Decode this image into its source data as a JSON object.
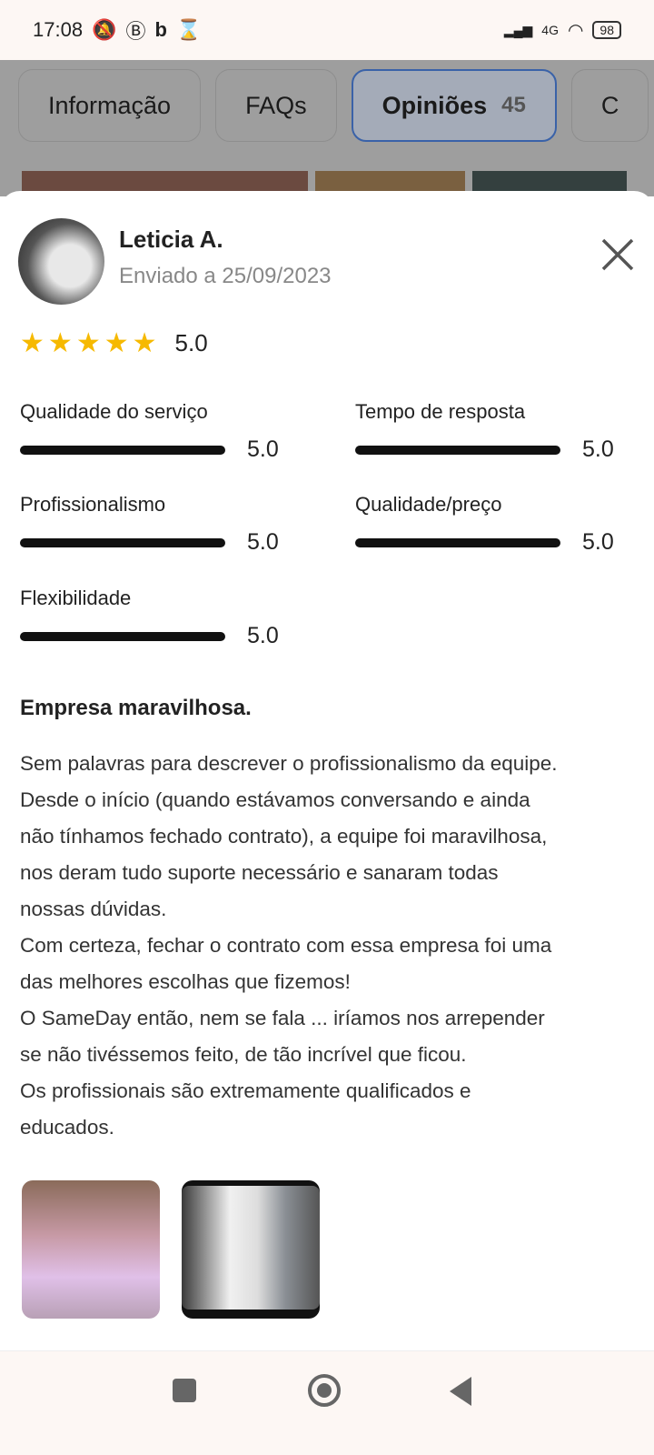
{
  "status_bar": {
    "time": "17:08",
    "battery": "98",
    "network": "4G"
  },
  "tabs": [
    {
      "label": "Informação"
    },
    {
      "label": "FAQs"
    },
    {
      "label": "Opiniões",
      "count": "45",
      "active": true
    },
    {
      "label": "C"
    }
  ],
  "review": {
    "author": "Leticia A.",
    "date": "Enviado a 25/09/2023",
    "rating": "5.0",
    "stars": 5,
    "criteria": [
      {
        "label": "Qualidade do serviço",
        "value": "5.0"
      },
      {
        "label": "Tempo de resposta",
        "value": "5.0"
      },
      {
        "label": "Profissionalismo",
        "value": "5.0"
      },
      {
        "label": "Qualidade/preço",
        "value": "5.0"
      },
      {
        "label": "Flexibilidade",
        "value": "5.0"
      }
    ],
    "title": "Empresa maravilhosa.",
    "body_lines": [
      "Sem palavras para descrever o profissionalismo da equipe.",
      "Desde o início (quando estávamos conversando e ainda",
      "não tínhamos fechado contrato), a equipe foi maravilhosa,",
      "nos deram tudo suporte necessário e sanaram todas",
      "nossas dúvidas.",
      "Com certeza, fechar o contrato com essa empresa foi uma",
      "das melhores escolhas que fizemos!",
      "O SameDay então, nem se fala ... iríamos nos arrepender",
      "se não tivéssemos feito, de tão incrível que ficou.",
      "Os profissionais são extremamente qualificados e",
      "educados."
    ]
  },
  "colors": {
    "star": "#f6b900",
    "active_tab_border": "#3a62a8"
  }
}
